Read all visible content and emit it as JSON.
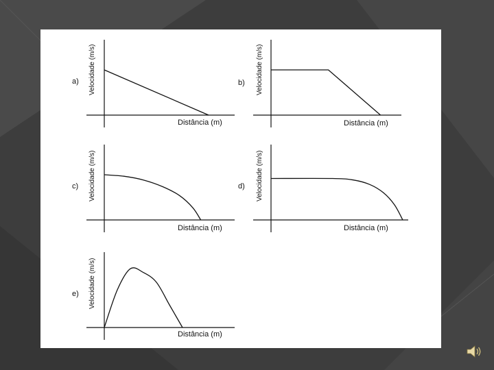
{
  "colors": {
    "background": "#3d3d3d",
    "card": "#ffffff",
    "ink": "#111111"
  },
  "slide": {
    "audio_icon": "speaker-icon"
  },
  "chart_data": [
    {
      "type": "line",
      "panel": "a)",
      "xlabel": "Distância (m)",
      "ylabel": "Velocidade (m/s)",
      "xlim": [
        0,
        1
      ],
      "ylim": [
        0,
        1
      ],
      "x": [
        0,
        0.8
      ],
      "y": [
        0.6,
        0
      ]
    },
    {
      "type": "line",
      "panel": "b)",
      "xlabel": "Distância (m)",
      "ylabel": "Velocidade (m/s)",
      "xlim": [
        0,
        1
      ],
      "ylim": [
        0,
        1
      ],
      "x": [
        0,
        0.44,
        0.84
      ],
      "y": [
        0.6,
        0.6,
        0
      ]
    },
    {
      "type": "line",
      "panel": "c)",
      "xlabel": "Distância (m)",
      "ylabel": "Velocidade (m/s)",
      "xlim": [
        0,
        1
      ],
      "ylim": [
        0,
        1
      ],
      "x": [
        0,
        0.15,
        0.3,
        0.45,
        0.58,
        0.68,
        0.74
      ],
      "y": [
        0.6,
        0.58,
        0.53,
        0.44,
        0.32,
        0.16,
        0
      ]
    },
    {
      "type": "line",
      "panel": "d)",
      "xlabel": "Distância (m)",
      "ylabel": "Velocidade (m/s)",
      "xlim": [
        0,
        1
      ],
      "ylim": [
        0,
        1
      ],
      "x": [
        0,
        0.45,
        0.6,
        0.72,
        0.82,
        0.9,
        0.96
      ],
      "y": [
        0.55,
        0.55,
        0.53,
        0.47,
        0.36,
        0.2,
        0
      ]
    },
    {
      "type": "line",
      "panel": "e)",
      "xlabel": "Distância (m)",
      "ylabel": "Velocidade (m/s)",
      "xlim": [
        0,
        1
      ],
      "ylim": [
        0,
        1
      ],
      "x": [
        0,
        0.1,
        0.2,
        0.3,
        0.4,
        0.5,
        0.6
      ],
      "y": [
        0,
        0.5,
        0.78,
        0.73,
        0.6,
        0.3,
        0
      ]
    }
  ]
}
